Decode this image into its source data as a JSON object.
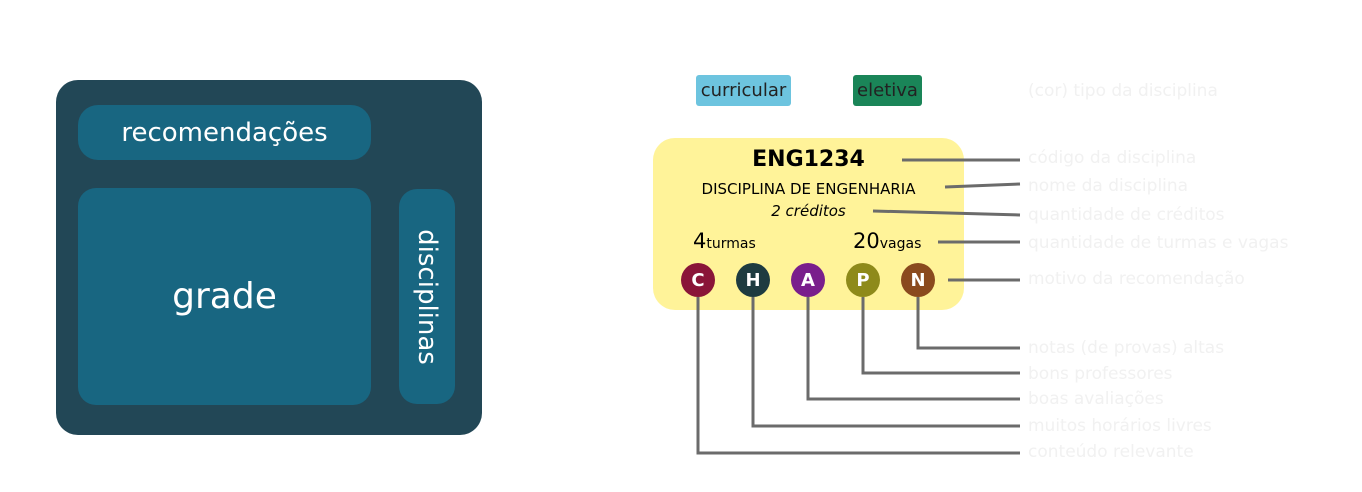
{
  "layout": {
    "recommendations_label": "recomendações",
    "grade_label": "grade",
    "disciplines_label": "disciplinas"
  },
  "legend": {
    "curricular_label": "curricular",
    "curricular_color": "#6dc4df",
    "elective_label": "eletiva",
    "elective_color": "#1a8558"
  },
  "card": {
    "code": "ENG1234",
    "name": "DISCIPLINA DE ENGENHARIA",
    "credits": "2 créditos",
    "turmas_count": "4",
    "turmas_label": "turmas",
    "vagas_count": "20",
    "vagas_label": "vagas",
    "badges": [
      {
        "letter": "C",
        "color": "#8a1538"
      },
      {
        "letter": "H",
        "color": "#1e3b40"
      },
      {
        "letter": "A",
        "color": "#7a1e8c"
      },
      {
        "letter": "P",
        "color": "#8e8a1a"
      },
      {
        "letter": "N",
        "color": "#8a4a1e"
      }
    ]
  },
  "annotations": {
    "type_color": "(cor) tipo da disciplina",
    "code": "código da disciplina",
    "name": "nome da disciplina",
    "credits": "quantidade de créditos",
    "turmas_vagas": "quantidade de turmas e vagas",
    "reason": "motivo da recomendação",
    "high_grades": "notas (de provas) altas",
    "good_professors": "bons professores",
    "good_reviews": "boas avaliações",
    "free_hours": "muitos horários livres",
    "relevant_content": "conteúdo relevante"
  }
}
